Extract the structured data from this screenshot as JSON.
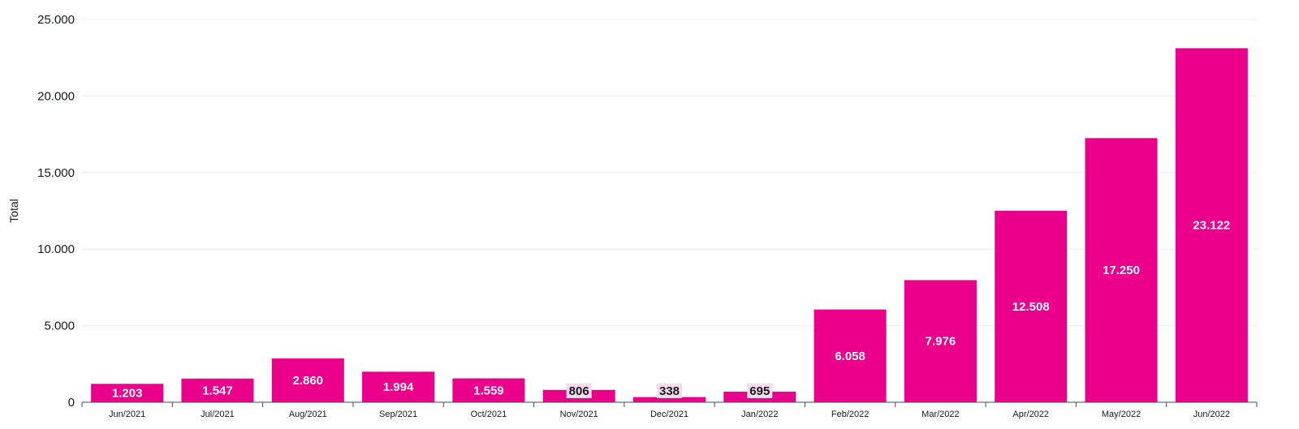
{
  "chart_data": {
    "type": "bar",
    "categories": [
      "Jun/2021",
      "Jul/2021",
      "Aug/2021",
      "Sep/2021",
      "Oct/2021",
      "Nov/2021",
      "Dec/2021",
      "Jan/2022",
      "Feb/2022",
      "Mar/2022",
      "Apr/2022",
      "May/2022",
      "Jun/2022"
    ],
    "values": [
      1203,
      1547,
      2860,
      1994,
      1559,
      806,
      338,
      695,
      6058,
      7976,
      12508,
      17250,
      23122
    ],
    "data_labels": [
      "1.203",
      "1.547",
      "2.860",
      "1.994",
      "1.559",
      "806",
      "338",
      "695",
      "6.058",
      "7.976",
      "12.508",
      "17.250",
      "23.122"
    ],
    "ylabel": "Total",
    "xlabel": "",
    "ylim": [
      0,
      25000
    ],
    "y_ticks": [
      0,
      5000,
      10000,
      15000,
      20000,
      25000
    ],
    "y_tick_labels": [
      "0",
      "5.000",
      "10.000",
      "15.000",
      "20.000",
      "25.000"
    ],
    "grid": true,
    "bar_color": "#eb008b",
    "label_on_bar_color": "#ffffff",
    "label_small_bar_color": "#16191f",
    "label_small_bar_bg": "#f9d9ec"
  }
}
